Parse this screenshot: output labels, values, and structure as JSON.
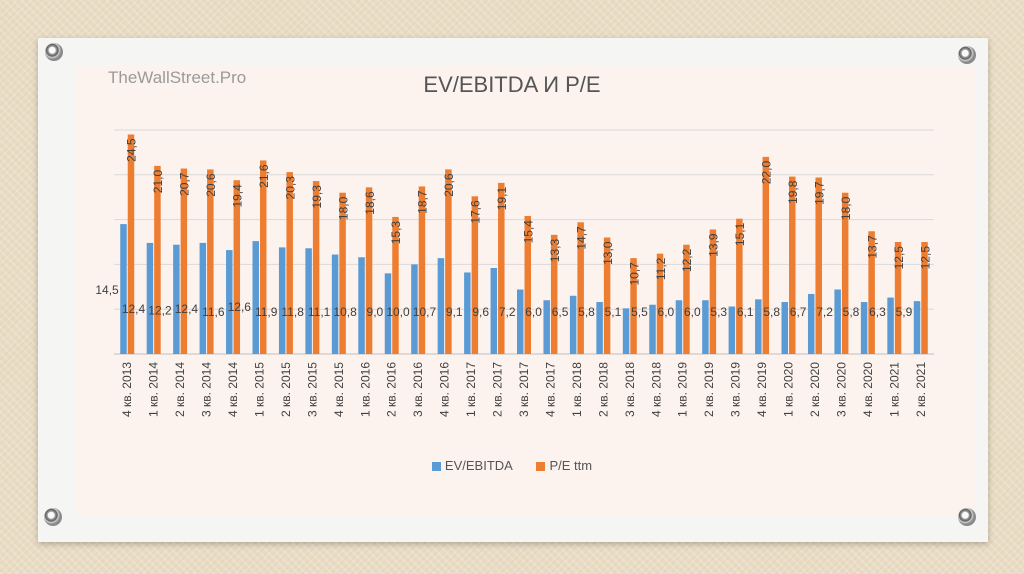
{
  "watermark": "TheWallStreet.Pro",
  "chart_data": {
    "type": "bar",
    "title": "EV/EBITDA И P/E",
    "categories": [
      "4 кв. 2013",
      "1 кв. 2014",
      "2 кв. 2014",
      "3 кв. 2014",
      "4 кв. 2014",
      "1 кв. 2015",
      "2 кв. 2015",
      "3 кв. 2015",
      "4 кв. 2015",
      "1 кв. 2016",
      "2 кв. 2016",
      "3 кв. 2016",
      "4 кв. 2016",
      "1 кв. 2017",
      "2 кв. 2017",
      "3 кв. 2017",
      "4 кв. 2017",
      "1 кв. 2018",
      "2 кв. 2018",
      "3 кв. 2018",
      "4 кв. 2018",
      "1 кв. 2019",
      "2 кв. 2019",
      "3 кв. 2019",
      "4 кв. 2019",
      "1 кв. 2020",
      "2 кв. 2020",
      "3 кв. 2020",
      "4 кв. 2020",
      "1 кв. 2021",
      "2 кв. 2021"
    ],
    "series": [
      {
        "name": "EV/EBITDA",
        "color": "#5b9bd5",
        "values": [
          14.5,
          12.4,
          12.2,
          12.4,
          11.6,
          12.6,
          11.9,
          11.8,
          11.1,
          10.8,
          9.0,
          10.0,
          10.7,
          9.1,
          9.6,
          7.2,
          6.0,
          6.5,
          5.8,
          5.1,
          5.5,
          6.0,
          6.0,
          5.3,
          6.1,
          5.8,
          6.7,
          7.2,
          5.8,
          6.3,
          5.9
        ],
        "labels": [
          "14,5",
          "12,4",
          "12,2",
          "12,4",
          "11,6",
          "12,6",
          "11,9",
          "11,8",
          "11,1",
          "10,8",
          "9,0",
          "10,0",
          "10,7",
          "9,1",
          "9,6",
          "7,2",
          "6,0",
          "6,5",
          "5,8",
          "5,1",
          "5,5",
          "6,0",
          "6,0",
          "5,3",
          "6,1",
          "5,8",
          "6,7",
          "7,2",
          "5,8",
          "6,3",
          "5,9"
        ]
      },
      {
        "name": "P/E ttm",
        "color": "#ed7d31",
        "values": [
          24.5,
          21.0,
          20.7,
          20.6,
          19.4,
          21.6,
          20.3,
          19.3,
          18.0,
          18.6,
          15.3,
          18.7,
          20.6,
          17.6,
          19.1,
          15.4,
          13.3,
          14.7,
          13.0,
          10.7,
          11.2,
          12.2,
          13.9,
          15.1,
          22.0,
          19.8,
          19.7,
          18.0,
          13.7,
          12.5,
          12.5
        ],
        "labels": [
          "24,5",
          "21,0",
          "20,7",
          "20,6",
          "19,4",
          "21,6",
          "20,3",
          "19,3",
          "18,0",
          "18,6",
          "15,3",
          "18,7",
          "20,6",
          "17,6",
          "19,1",
          "15,4",
          "13,3",
          "14,7",
          "13,0",
          "10,7",
          "11,2",
          "12,2",
          "13,9",
          "15,1",
          "22,0",
          "19,8",
          "19,7",
          "18,0",
          "13,7",
          "12,5",
          "12,5"
        ]
      }
    ],
    "ylim": [
      0,
      25
    ],
    "grid": true,
    "legend_position": "bottom"
  }
}
